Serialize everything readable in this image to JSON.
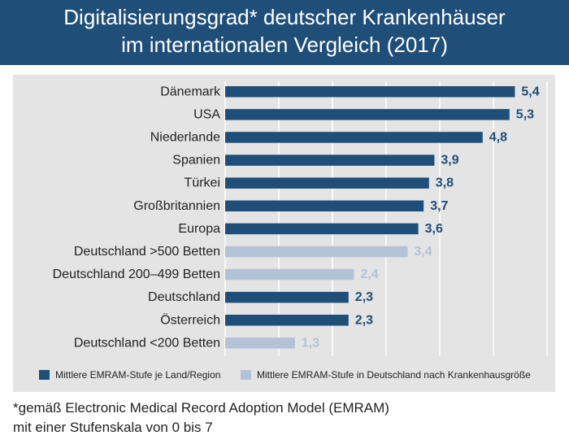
{
  "header": {
    "title_line1": "Digitalisierungsgrad* deutscher Krankenhäuser",
    "title_line2": "im internationalen Vergleich (2017)"
  },
  "colors": {
    "header_bg": "#1f4e79",
    "country_bar": "#1f4e79",
    "germany_size_bar": "#b4c2d7",
    "panel_bg": "#e4e4e4"
  },
  "chart_data": {
    "type": "bar",
    "orientation": "horizontal",
    "categories": [
      "Dänemark",
      "USA",
      "Niederlande",
      "Spanien",
      "Türkei",
      "Großbritannien",
      "Europa",
      "Deutschland >500 Betten",
      "Deutschland 200–499 Betten",
      "Deutschland",
      "Österreich",
      "Deutschland <200 Betten"
    ],
    "values": [
      5.4,
      5.3,
      4.8,
      3.9,
      3.8,
      3.7,
      3.6,
      3.4,
      2.4,
      2.3,
      2.3,
      1.3
    ],
    "value_labels": [
      "5,4",
      "5,3",
      "4,8",
      "3,9",
      "3,8",
      "3,7",
      "3,6",
      "3,4",
      "2,4",
      "2,3",
      "2,3",
      "1,3"
    ],
    "series_index": [
      0,
      0,
      0,
      0,
      0,
      0,
      0,
      1,
      1,
      0,
      0,
      1
    ],
    "xlim": [
      0,
      7
    ],
    "grid": true,
    "legend": [
      {
        "label": "Mittlere EMRAM-Stufe je Land/Region",
        "color": "#1f4e79"
      },
      {
        "label": "Mittlere EMRAM-Stufe in Deutschland nach Krankenhausgröße",
        "color": "#b4c2d7"
      }
    ],
    "legend_position": "bottom"
  },
  "footnote": {
    "line1": "*gemäß Electronic Medical Record Adoption Model (EMRAM)",
    "line2": "mit einer Stufenskala von 0 bis 7"
  }
}
